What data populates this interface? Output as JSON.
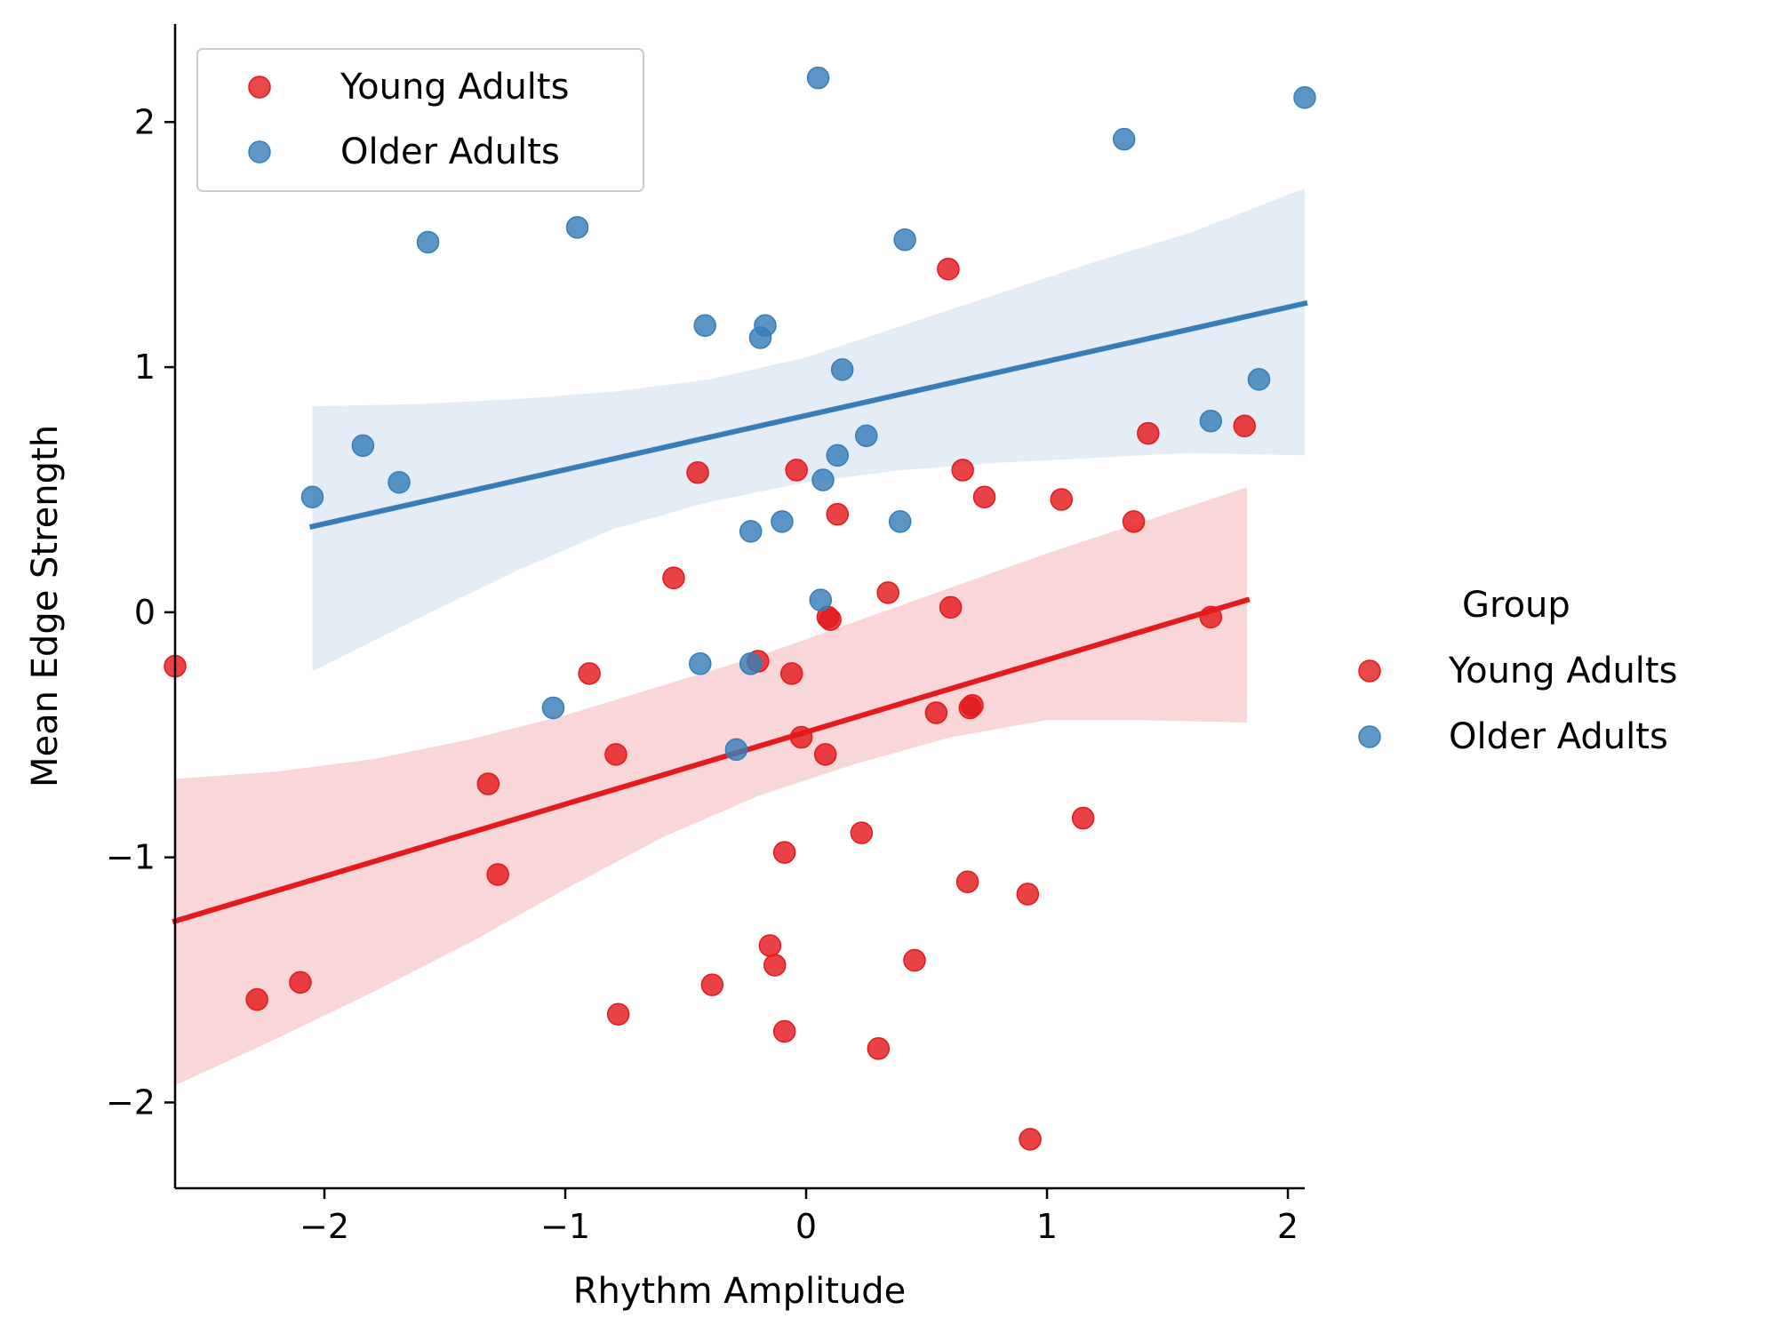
{
  "chart_data": {
    "type": "scatter",
    "xlabel": "Rhythm Amplitude",
    "ylabel": "Mean Edge Strength",
    "xlim": [
      -2.62,
      2.07
    ],
    "ylim": [
      -2.35,
      2.4
    ],
    "xticks": [
      -2,
      -1,
      0,
      1,
      2
    ],
    "yticks": [
      -2,
      -1,
      0,
      1,
      2
    ],
    "xtick_labels": [
      "−2",
      "−1",
      "0",
      "1",
      "2"
    ],
    "ytick_labels": [
      "−2",
      "−1",
      "0",
      "1",
      "2"
    ],
    "grid": false,
    "legend_inside": {
      "placement": "top-left",
      "entries": [
        "Young Adults",
        "Older Adults"
      ]
    },
    "legend_outside": {
      "placement": "right",
      "title": "Group",
      "entries": [
        "Young Adults",
        "Older Adults"
      ]
    },
    "series": [
      {
        "name": "Young Adults",
        "color": "#e41a1c",
        "band_color": "#f7c8c9",
        "points": [
          [
            -2.62,
            -0.22
          ],
          [
            -2.28,
            -1.58
          ],
          [
            -2.1,
            -1.51
          ],
          [
            -1.32,
            -0.7
          ],
          [
            -1.28,
            -1.07
          ],
          [
            -0.9,
            -0.25
          ],
          [
            -0.79,
            -0.58
          ],
          [
            -0.78,
            -1.64
          ],
          [
            -0.55,
            0.14
          ],
          [
            -0.45,
            0.57
          ],
          [
            -0.39,
            -1.52
          ],
          [
            -0.2,
            -0.2
          ],
          [
            -0.15,
            -1.36
          ],
          [
            -0.13,
            -1.44
          ],
          [
            -0.09,
            -0.98
          ],
          [
            -0.09,
            -1.71
          ],
          [
            -0.06,
            -0.25
          ],
          [
            -0.04,
            0.58
          ],
          [
            -0.02,
            -0.51
          ],
          [
            0.08,
            -0.58
          ],
          [
            0.09,
            -0.02
          ],
          [
            0.1,
            -0.03
          ],
          [
            0.13,
            0.4
          ],
          [
            0.23,
            -0.9
          ],
          [
            0.3,
            -1.78
          ],
          [
            0.34,
            0.08
          ],
          [
            0.45,
            -1.42
          ],
          [
            0.54,
            -0.41
          ],
          [
            0.59,
            1.4
          ],
          [
            0.6,
            0.02
          ],
          [
            0.65,
            0.58
          ],
          [
            0.67,
            -1.1
          ],
          [
            0.68,
            -0.39
          ],
          [
            0.69,
            -0.38
          ],
          [
            0.74,
            0.47
          ],
          [
            0.92,
            -1.15
          ],
          [
            0.93,
            -2.15
          ],
          [
            1.06,
            0.46
          ],
          [
            1.15,
            -0.84
          ],
          [
            1.36,
            0.37
          ],
          [
            1.42,
            0.73
          ],
          [
            1.68,
            -0.02
          ],
          [
            1.82,
            0.76
          ]
        ],
        "fit": {
          "x0": -2.62,
          "y0": -1.26,
          "x1": 1.83,
          "y1": 0.05
        },
        "band": {
          "x": [
            -2.62,
            -2.2,
            -1.8,
            -1.4,
            -1.0,
            -0.6,
            -0.2,
            0.2,
            0.6,
            1.0,
            1.4,
            1.83
          ],
          "upper": [
            -0.68,
            -0.65,
            -0.6,
            -0.52,
            -0.42,
            -0.3,
            -0.18,
            -0.04,
            0.1,
            0.24,
            0.37,
            0.51
          ],
          "lower": [
            -1.93,
            -1.74,
            -1.55,
            -1.35,
            -1.13,
            -0.92,
            -0.75,
            -0.62,
            -0.51,
            -0.44,
            -0.44,
            -0.45
          ]
        }
      },
      {
        "name": "Older Adults",
        "color": "#377eb8",
        "band_color": "#dbe7f3",
        "points": [
          [
            -2.05,
            0.47
          ],
          [
            -1.84,
            0.68
          ],
          [
            -1.69,
            0.53
          ],
          [
            -1.57,
            1.51
          ],
          [
            -1.05,
            -0.39
          ],
          [
            -0.95,
            1.57
          ],
          [
            -0.44,
            -0.21
          ],
          [
            -0.42,
            1.17
          ],
          [
            -0.29,
            -0.56
          ],
          [
            -0.23,
            -0.21
          ],
          [
            -0.23,
            0.33
          ],
          [
            -0.19,
            1.12
          ],
          [
            -0.17,
            1.17
          ],
          [
            -0.1,
            0.37
          ],
          [
            0.05,
            2.18
          ],
          [
            0.06,
            0.05
          ],
          [
            0.07,
            0.54
          ],
          [
            0.13,
            0.64
          ],
          [
            0.15,
            0.99
          ],
          [
            0.25,
            0.72
          ],
          [
            0.39,
            0.37
          ],
          [
            0.41,
            1.52
          ],
          [
            1.32,
            1.93
          ],
          [
            1.68,
            0.78
          ],
          [
            1.88,
            0.95
          ],
          [
            2.07,
            2.1
          ]
        ],
        "fit": {
          "x0": -2.05,
          "y0": 0.35,
          "x1": 2.07,
          "y1": 1.26
        },
        "band": {
          "x": [
            -2.05,
            -1.6,
            -1.2,
            -0.8,
            -0.4,
            0.0,
            0.4,
            0.8,
            1.2,
            1.6,
            2.07
          ],
          "upper": [
            0.84,
            0.85,
            0.87,
            0.9,
            0.95,
            1.04,
            1.17,
            1.3,
            1.43,
            1.55,
            1.73
          ],
          "lower": [
            -0.24,
            -0.02,
            0.17,
            0.34,
            0.45,
            0.53,
            0.58,
            0.61,
            0.63,
            0.65,
            0.64
          ]
        }
      }
    ]
  }
}
